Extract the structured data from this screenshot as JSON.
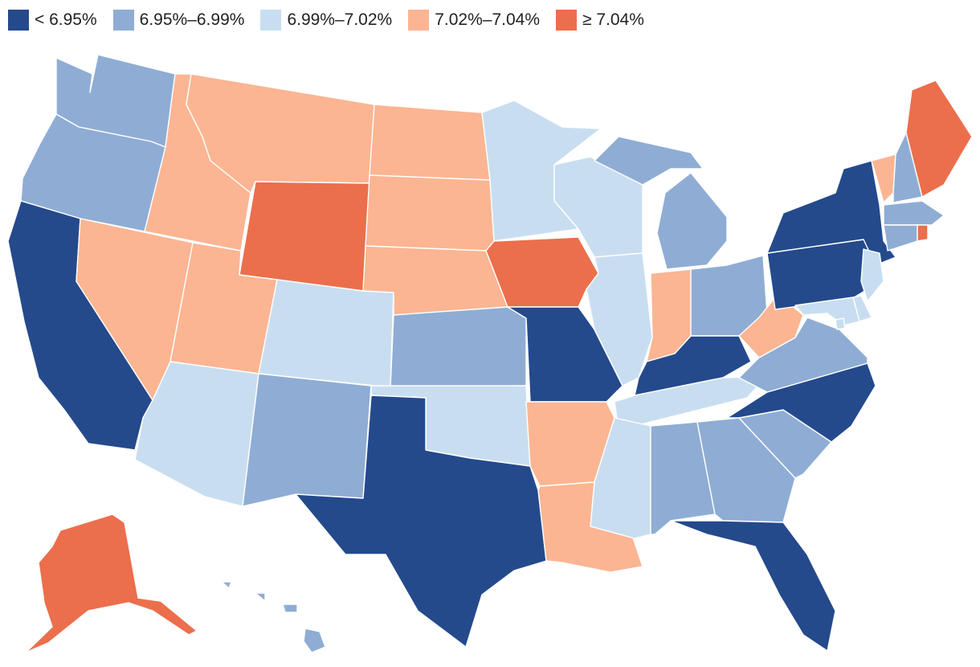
{
  "legend": {
    "items": [
      {
        "label": "< 6.95%",
        "color": "#244a8c"
      },
      {
        "label": "6.95%–6.99%",
        "color": "#8fadd4"
      },
      {
        "label": "6.99%–7.02%",
        "color": "#c8def0"
      },
      {
        "label": "7.02%–7.04%",
        "color": "#fbb592"
      },
      {
        "label": "≥ 7.04%",
        "color": "#eb6f4c"
      }
    ]
  },
  "states": [
    {
      "abbr": "WA",
      "bin": 1
    },
    {
      "abbr": "OR",
      "bin": 1
    },
    {
      "abbr": "CA",
      "bin": 0
    },
    {
      "abbr": "ID",
      "bin": 3
    },
    {
      "abbr": "NV",
      "bin": 3
    },
    {
      "abbr": "MT",
      "bin": 3
    },
    {
      "abbr": "WY",
      "bin": 4
    },
    {
      "abbr": "UT",
      "bin": 3
    },
    {
      "abbr": "AZ",
      "bin": 2
    },
    {
      "abbr": "CO",
      "bin": 2
    },
    {
      "abbr": "NM",
      "bin": 1
    },
    {
      "abbr": "ND",
      "bin": 3
    },
    {
      "abbr": "SD",
      "bin": 3
    },
    {
      "abbr": "NE",
      "bin": 3
    },
    {
      "abbr": "KS",
      "bin": 1
    },
    {
      "abbr": "OK",
      "bin": 2
    },
    {
      "abbr": "TX",
      "bin": 0
    },
    {
      "abbr": "MN",
      "bin": 2
    },
    {
      "abbr": "IA",
      "bin": 4
    },
    {
      "abbr": "MO",
      "bin": 0
    },
    {
      "abbr": "AR",
      "bin": 3
    },
    {
      "abbr": "LA",
      "bin": 3
    },
    {
      "abbr": "WI",
      "bin": 2
    },
    {
      "abbr": "IL",
      "bin": 2
    },
    {
      "abbr": "MI",
      "bin": 1
    },
    {
      "abbr": "IN",
      "bin": 3
    },
    {
      "abbr": "OH",
      "bin": 1
    },
    {
      "abbr": "KY",
      "bin": 0
    },
    {
      "abbr": "TN",
      "bin": 2
    },
    {
      "abbr": "MS",
      "bin": 2
    },
    {
      "abbr": "AL",
      "bin": 1
    },
    {
      "abbr": "GA",
      "bin": 1
    },
    {
      "abbr": "FL",
      "bin": 0
    },
    {
      "abbr": "SC",
      "bin": 1
    },
    {
      "abbr": "NC",
      "bin": 0
    },
    {
      "abbr": "VA",
      "bin": 1
    },
    {
      "abbr": "WV",
      "bin": 3
    },
    {
      "abbr": "PA",
      "bin": 0
    },
    {
      "abbr": "NY",
      "bin": 0
    },
    {
      "abbr": "VT",
      "bin": 3
    },
    {
      "abbr": "NH",
      "bin": 1
    },
    {
      "abbr": "ME",
      "bin": 4
    },
    {
      "abbr": "MA",
      "bin": 1
    },
    {
      "abbr": "RI",
      "bin": 4
    },
    {
      "abbr": "CT",
      "bin": 1
    },
    {
      "abbr": "NJ",
      "bin": 2
    },
    {
      "abbr": "DE",
      "bin": 2
    },
    {
      "abbr": "MD",
      "bin": 2
    },
    {
      "abbr": "DC",
      "bin": 2
    },
    {
      "abbr": "AK",
      "bin": 4
    },
    {
      "abbr": "HI",
      "bin": 1
    }
  ]
}
